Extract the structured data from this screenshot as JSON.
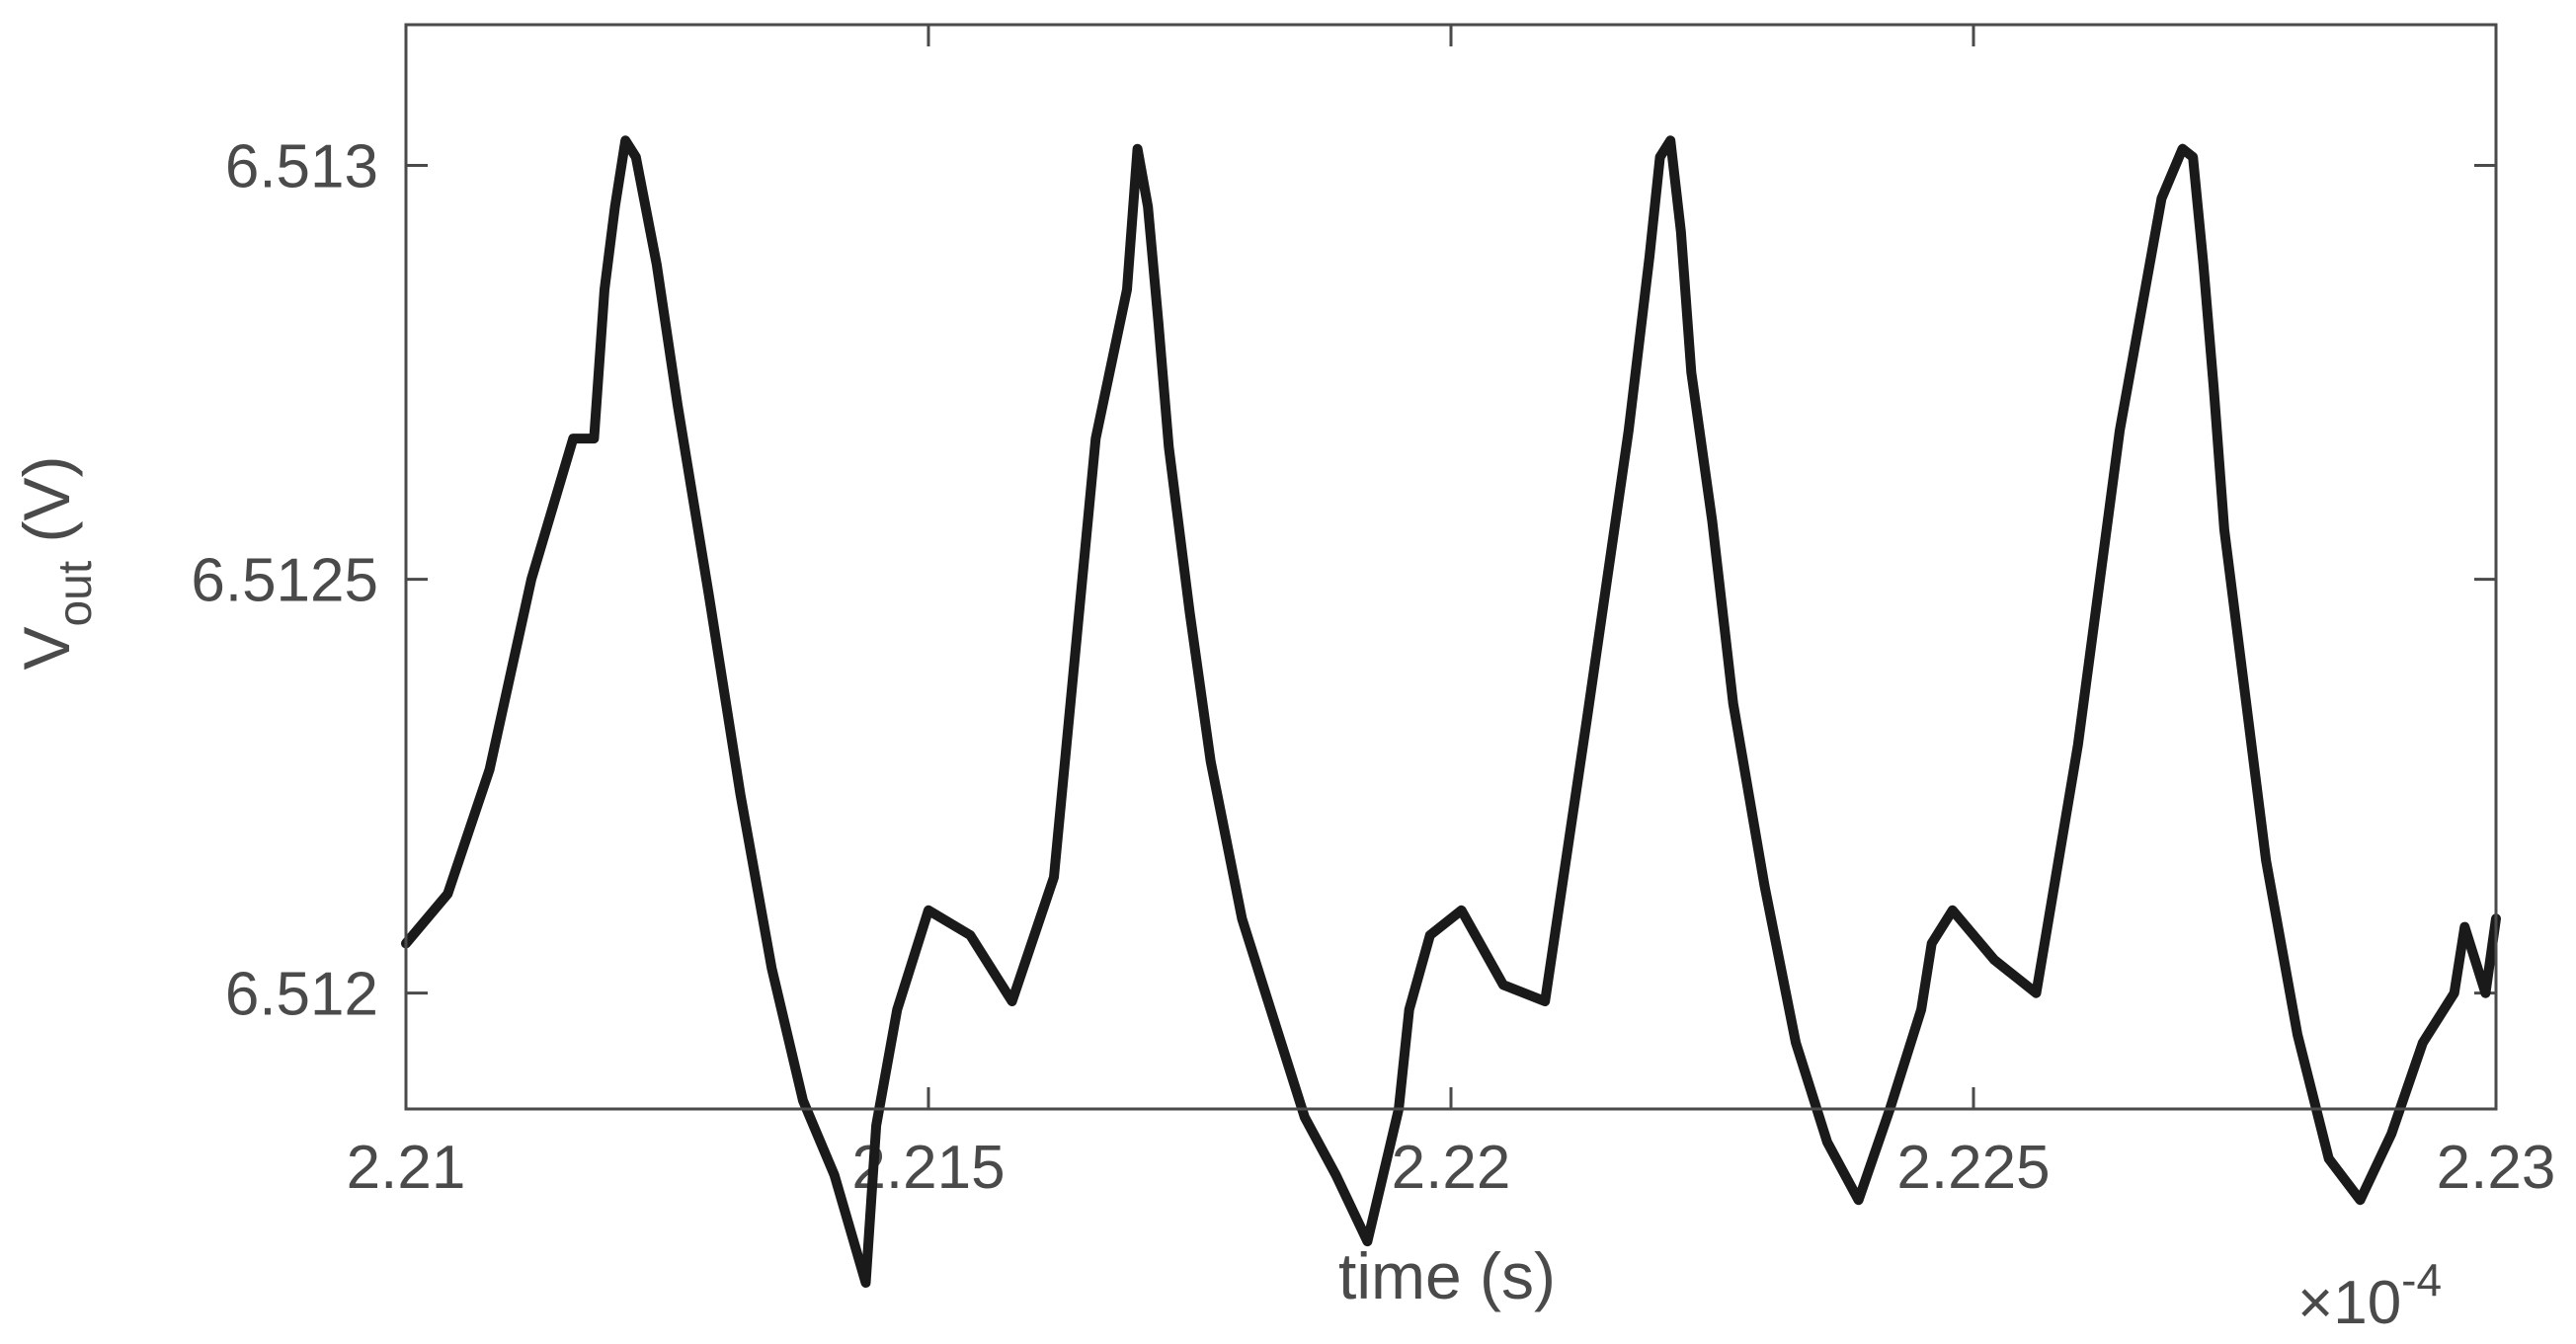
{
  "chart_data": {
    "type": "line",
    "xlabel": "time (s)",
    "ylabel_main": "V",
    "ylabel_sub": "out",
    "ylabel_unit": " (V)",
    "x_exponent_prefix": "×10",
    "x_exponent_power": "-4",
    "xlim": [
      2.21,
      2.23
    ],
    "ylim": [
      6.51186,
      6.51317
    ],
    "x_ticks": [
      2.21,
      2.215,
      2.22,
      2.225,
      2.23
    ],
    "x_tick_labels": [
      "2.21",
      "2.215",
      "2.22",
      "2.225",
      "2.23"
    ],
    "y_ticks": [
      6.512,
      6.5125,
      6.513
    ],
    "y_tick_labels": [
      "6.512",
      "6.5125",
      "6.513"
    ],
    "grid": false,
    "line_color": "#1a1a1a",
    "axis_color": "#4a4a4a",
    "series": [
      {
        "x": [
          2.21,
          2.2104,
          2.2108,
          2.2112,
          2.2116,
          2.2118,
          2.2119,
          2.212,
          2.2121,
          2.2122,
          2.2124,
          2.2126,
          2.2129,
          2.2132,
          2.2135,
          2.2138,
          2.2141,
          2.2144,
          2.2145,
          2.2147,
          2.215,
          2.2154,
          2.2158,
          2.2162,
          2.2166,
          2.2169,
          2.217,
          2.2171,
          2.2172,
          2.2173,
          2.2175,
          2.2177,
          2.218,
          2.2183,
          2.2186,
          2.2189,
          2.2192,
          2.2195,
          2.2196,
          2.2198,
          2.2201,
          2.2205,
          2.2209,
          2.2213,
          2.2217,
          2.2219,
          2.222,
          2.2221,
          2.2222,
          2.2223,
          2.2225,
          2.2227,
          2.223,
          2.2233,
          2.2236,
          2.2239,
          2.2242,
          2.2245,
          2.2246,
          2.2248,
          2.2252,
          2.2256,
          2.226,
          2.2264,
          2.2268,
          2.227,
          2.2271,
          2.2272,
          2.2273,
          2.2274,
          2.2276,
          2.2278,
          2.2281,
          2.2284,
          2.2287,
          2.229,
          2.2293,
          2.2296,
          2.2297,
          2.2299,
          2.23
        ],
        "y": [
          6.51206,
          6.51212,
          6.51227,
          6.5125,
          6.51267,
          6.51267,
          6.51285,
          6.51295,
          6.51303,
          6.51301,
          6.51288,
          6.51271,
          6.51248,
          6.51224,
          6.51203,
          6.51187,
          6.51178,
          6.51165,
          6.51184,
          6.51198,
          6.5121,
          6.51207,
          6.51199,
          6.51214,
          6.51267,
          6.51285,
          6.51302,
          6.51295,
          6.51281,
          6.51266,
          6.51246,
          6.51228,
          6.51209,
          6.51197,
          6.51185,
          6.51178,
          6.5117,
          6.51186,
          6.51198,
          6.51207,
          6.5121,
          6.51201,
          6.51199,
          6.51233,
          6.51268,
          6.51289,
          6.51301,
          6.51303,
          6.51292,
          6.51275,
          6.51257,
          6.51235,
          6.51213,
          6.51194,
          6.51182,
          6.51175,
          6.51186,
          6.51198,
          6.51206,
          6.5121,
          6.51204,
          6.512,
          6.5123,
          6.51268,
          6.51296,
          6.51302,
          6.51301,
          6.51288,
          6.51273,
          6.51256,
          6.51236,
          6.51216,
          6.51195,
          6.5118,
          6.51175,
          6.51183,
          6.51194,
          6.512,
          6.51208,
          6.512,
          6.51209
        ]
      }
    ]
  }
}
